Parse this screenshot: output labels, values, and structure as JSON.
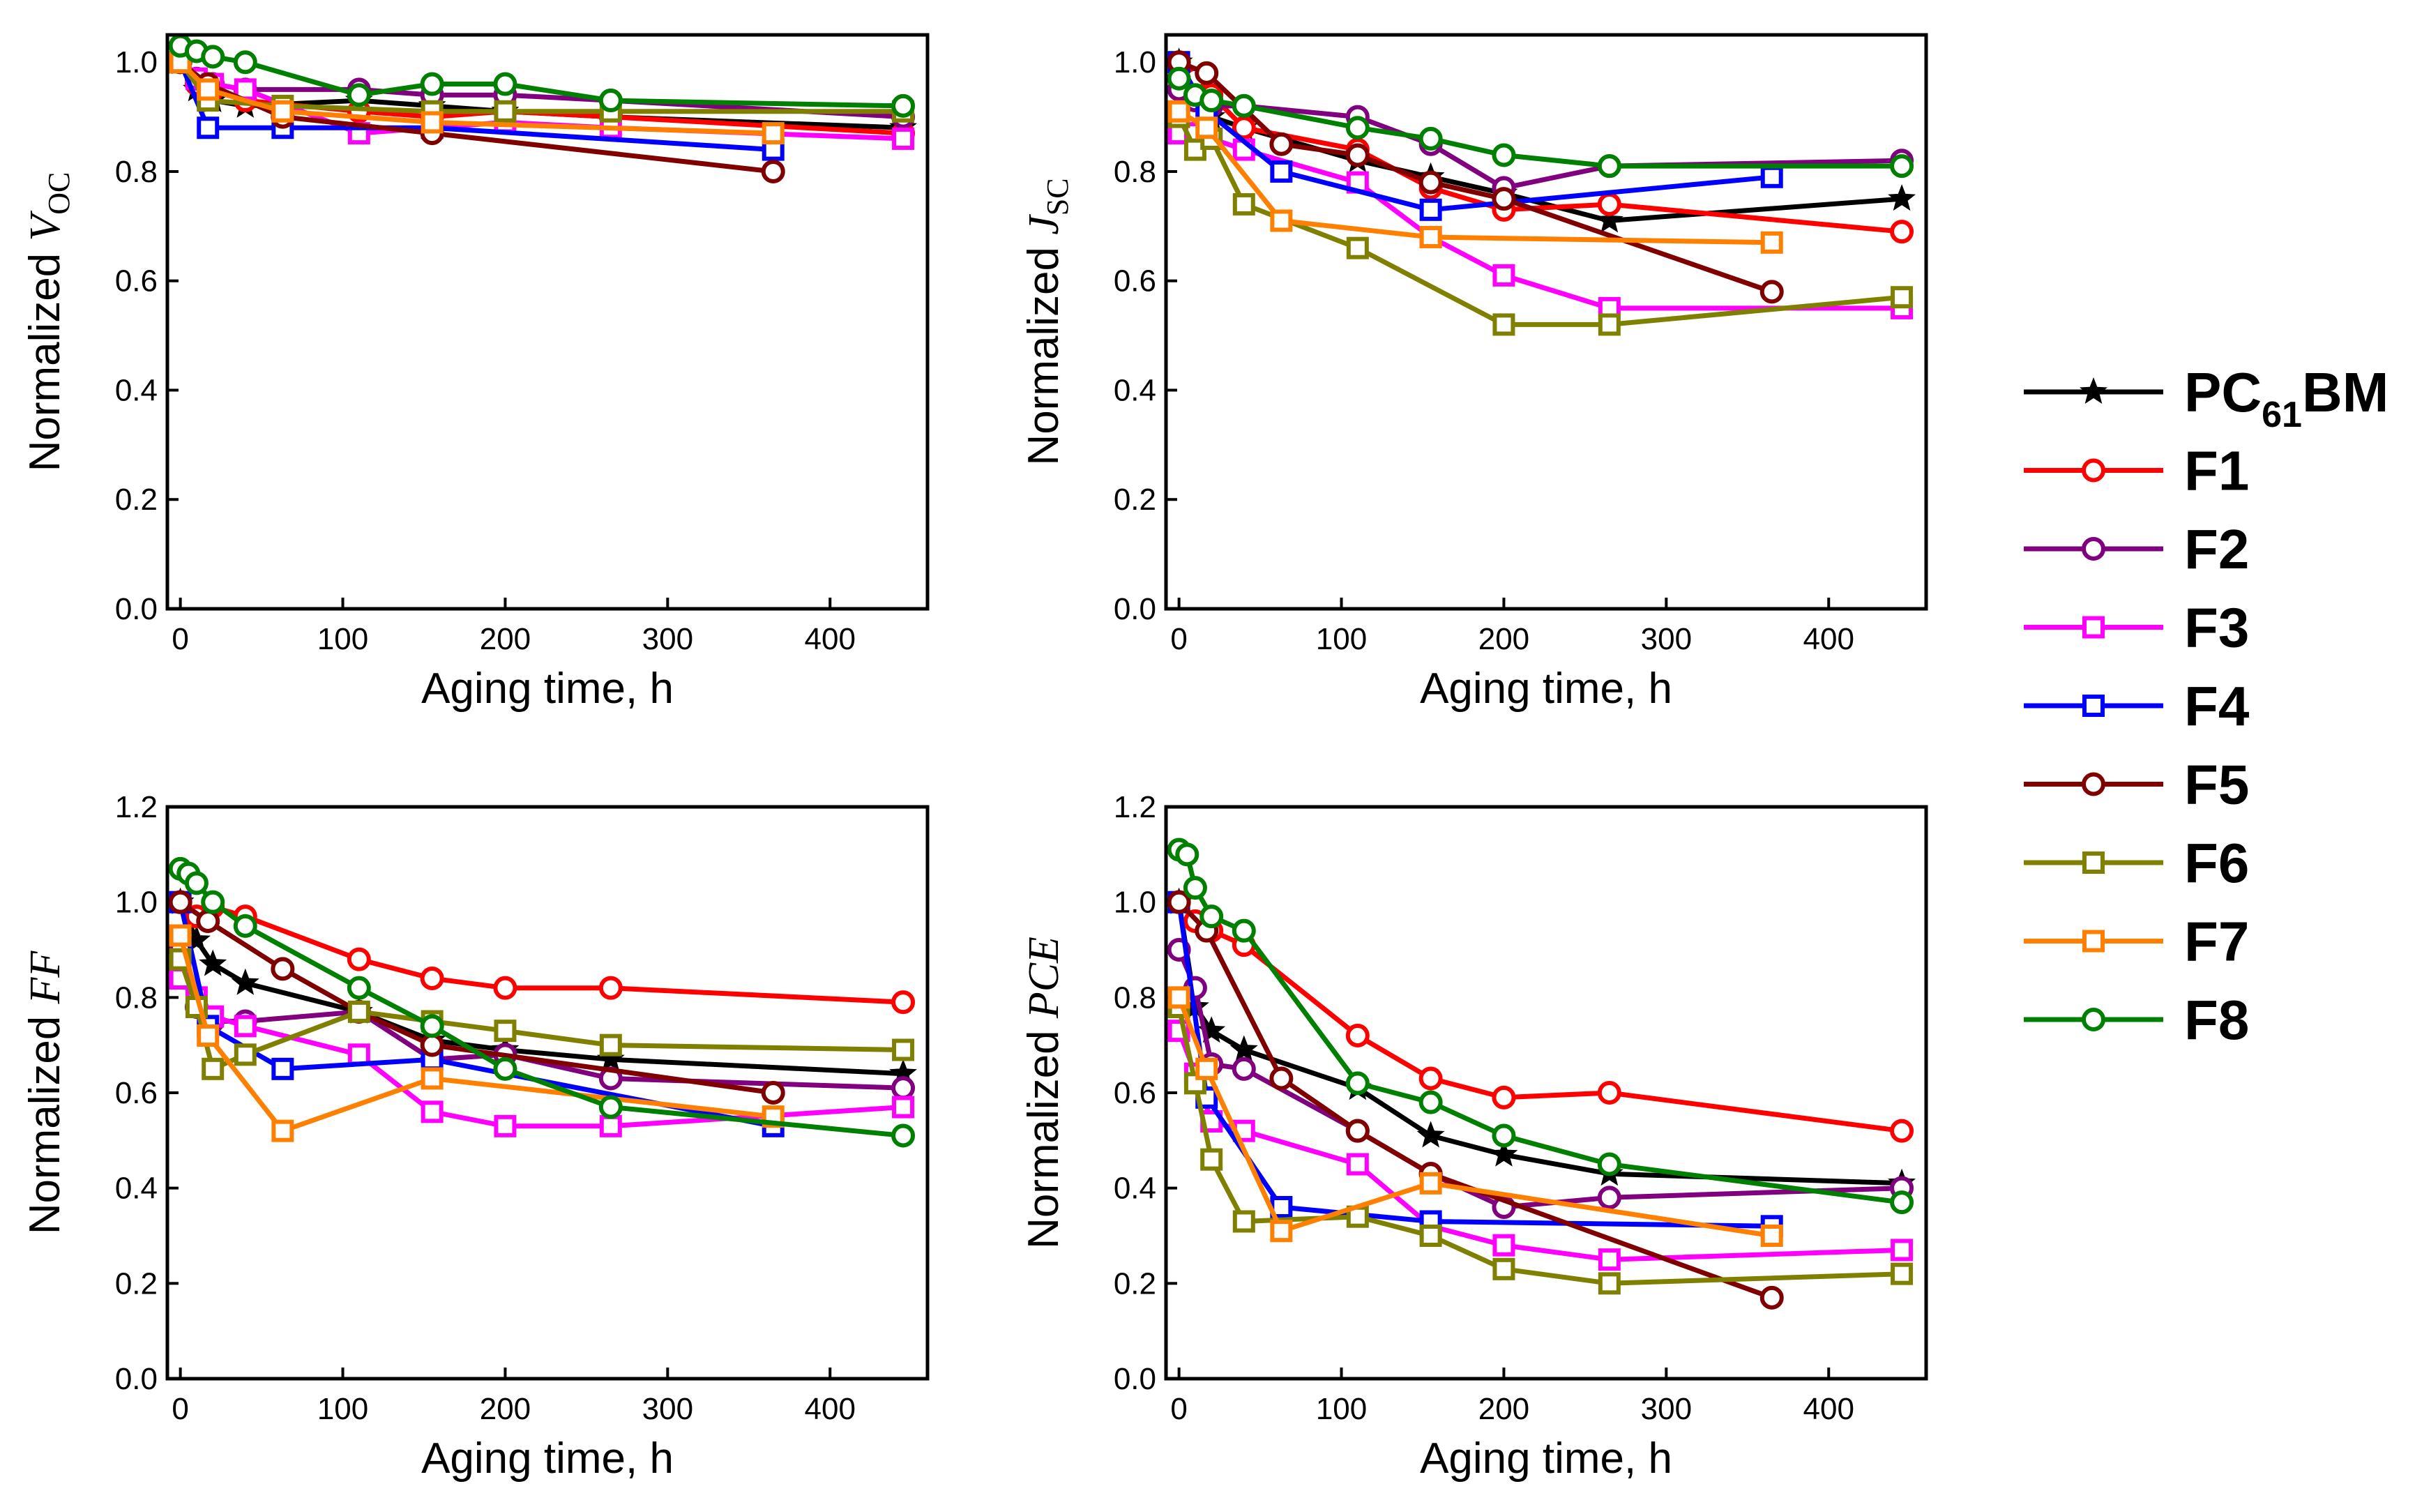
{
  "legend": {
    "entries": [
      {
        "key": "PC61BM",
        "label_main": "PC",
        "label_sub": "61",
        "label_tail": "BM",
        "color": "#000000",
        "marker": "star"
      },
      {
        "key": "F1",
        "label": "F1",
        "color": "#ff0000",
        "marker": "circle"
      },
      {
        "key": "F2",
        "label": "F2",
        "color": "#800080",
        "marker": "circle"
      },
      {
        "key": "F3",
        "label": "F3",
        "color": "#ff00ff",
        "marker": "square"
      },
      {
        "key": "F4",
        "label": "F4",
        "color": "#0000ff",
        "marker": "square"
      },
      {
        "key": "F5",
        "label": "F5",
        "color": "#800000",
        "marker": "circle"
      },
      {
        "key": "F6",
        "label": "F6",
        "color": "#808000",
        "marker": "square"
      },
      {
        "key": "F7",
        "label": "F7",
        "color": "#ff8000",
        "marker": "square"
      },
      {
        "key": "F8",
        "label": "F8",
        "color": "#008000",
        "marker": "circle"
      }
    ]
  },
  "chart_data": [
    {
      "id": "voc",
      "type": "line",
      "title": "",
      "ylabel_prefix": "Normalized ",
      "ylabel_symbol": "V",
      "ylabel_sub": "OC",
      "xlabel": "Aging time, h",
      "xlim": [
        -8,
        460
      ],
      "ylim": [
        0,
        1.05
      ],
      "xticks": [
        0,
        100,
        200,
        300,
        400
      ],
      "xtick_labels": [
        "0",
        "100",
        "200",
        "300",
        "400"
      ],
      "yticks": [
        0.0,
        0.2,
        0.4,
        0.6,
        0.8,
        1.0
      ],
      "ytick_labels": [
        "0.0",
        "0.2",
        "0.4",
        "0.6",
        "0.8",
        "1.0"
      ],
      "series": [
        {
          "name": "PC61BM",
          "x": [
            0,
            10,
            20,
            40,
            110,
            155,
            200,
            265,
            445
          ],
          "y": [
            1.0,
            0.95,
            0.93,
            0.92,
            0.93,
            0.92,
            0.91,
            0.9,
            0.88
          ]
        },
        {
          "name": "F1",
          "x": [
            0,
            10,
            20,
            40,
            110,
            155,
            200,
            265,
            445
          ],
          "y": [
            1.0,
            0.96,
            0.95,
            0.93,
            0.91,
            0.9,
            0.91,
            0.9,
            0.87
          ]
        },
        {
          "name": "F2",
          "x": [
            0,
            10,
            20,
            40,
            110,
            155,
            200,
            265,
            445
          ],
          "y": [
            1.0,
            0.97,
            0.96,
            0.95,
            0.95,
            0.94,
            0.94,
            0.93,
            0.9
          ]
        },
        {
          "name": "F3",
          "x": [
            0,
            10,
            20,
            40,
            110,
            155,
            200,
            265,
            445
          ],
          "y": [
            1.0,
            0.97,
            0.96,
            0.95,
            0.87,
            0.88,
            0.89,
            0.88,
            0.86
          ]
        },
        {
          "name": "F4",
          "x": [
            0,
            17,
            63,
            155,
            365
          ],
          "y": [
            1.0,
            0.88,
            0.88,
            0.88,
            0.84
          ]
        },
        {
          "name": "F5",
          "x": [
            0,
            17,
            63,
            155,
            365
          ],
          "y": [
            1.0,
            0.96,
            0.9,
            0.87,
            0.8
          ]
        },
        {
          "name": "F6",
          "x": [
            0,
            17,
            63,
            155,
            200,
            265,
            445
          ],
          "y": [
            1.0,
            0.93,
            0.92,
            0.91,
            0.91,
            0.91,
            0.91
          ]
        },
        {
          "name": "F7",
          "x": [
            0,
            17,
            63,
            155,
            365
          ],
          "y": [
            1.0,
            0.95,
            0.91,
            0.89,
            0.87
          ]
        },
        {
          "name": "F8",
          "x": [
            0,
            10,
            20,
            40,
            110,
            155,
            200,
            265,
            445
          ],
          "y": [
            1.03,
            1.02,
            1.01,
            1.0,
            0.94,
            0.96,
            0.96,
            0.93,
            0.92
          ]
        }
      ]
    },
    {
      "id": "jsc",
      "type": "line",
      "title": "",
      "ylabel_prefix": "Normalized ",
      "ylabel_symbol": "J",
      "ylabel_sub": "SC",
      "xlabel": "Aging time, h",
      "xlim": [
        -8,
        460
      ],
      "ylim": [
        0,
        1.05
      ],
      "xticks": [
        0,
        100,
        200,
        300,
        400
      ],
      "xtick_labels": [
        "0",
        "100",
        "200",
        "300",
        "400"
      ],
      "yticks": [
        0.0,
        0.2,
        0.4,
        0.6,
        0.8,
        1.0
      ],
      "ytick_labels": [
        "0.0",
        "0.2",
        "0.4",
        "0.6",
        "0.8",
        "1.0"
      ],
      "series": [
        {
          "name": "PC61BM",
          "x": [
            0,
            10,
            20,
            40,
            110,
            155,
            200,
            265,
            445
          ],
          "y": [
            1.0,
            0.93,
            0.9,
            0.88,
            0.82,
            0.79,
            0.76,
            0.71,
            0.75
          ]
        },
        {
          "name": "F1",
          "x": [
            0,
            10,
            20,
            40,
            110,
            155,
            200,
            265,
            445
          ],
          "y": [
            1.0,
            0.97,
            0.94,
            0.88,
            0.84,
            0.77,
            0.73,
            0.74,
            0.69
          ]
        },
        {
          "name": "F2",
          "x": [
            0,
            10,
            20,
            40,
            110,
            155,
            200,
            265,
            445
          ],
          "y": [
            0.95,
            0.93,
            0.92,
            0.92,
            0.9,
            0.85,
            0.77,
            0.81,
            0.82
          ]
        },
        {
          "name": "F3",
          "x": [
            0,
            10,
            20,
            40,
            110,
            155,
            200,
            265,
            445
          ],
          "y": [
            0.87,
            0.87,
            0.86,
            0.84,
            0.78,
            0.68,
            0.61,
            0.55,
            0.55
          ]
        },
        {
          "name": "F4",
          "x": [
            0,
            17,
            63,
            155,
            365
          ],
          "y": [
            1.0,
            0.91,
            0.8,
            0.73,
            0.79
          ]
        },
        {
          "name": "F5",
          "x": [
            0,
            17,
            63,
            110,
            155,
            200,
            365
          ],
          "y": [
            1.0,
            0.98,
            0.85,
            0.83,
            0.78,
            0.75,
            0.58
          ]
        },
        {
          "name": "F6",
          "x": [
            0,
            10,
            20,
            40,
            110,
            200,
            265,
            445
          ],
          "y": [
            0.9,
            0.84,
            0.86,
            0.74,
            0.66,
            0.52,
            0.52,
            0.57
          ]
        },
        {
          "name": "F7",
          "x": [
            0,
            17,
            63,
            155,
            365
          ],
          "y": [
            0.91,
            0.88,
            0.71,
            0.68,
            0.67
          ]
        },
        {
          "name": "F8",
          "x": [
            0,
            10,
            20,
            40,
            110,
            155,
            200,
            265,
            445
          ],
          "y": [
            0.97,
            0.94,
            0.93,
            0.92,
            0.88,
            0.86,
            0.83,
            0.81,
            0.81
          ]
        }
      ]
    },
    {
      "id": "ff",
      "type": "line",
      "title": "",
      "ylabel_prefix": "Normalized ",
      "ylabel_symbol": "FF",
      "ylabel_sub": "",
      "xlabel": "Aging time, h",
      "xlim": [
        -8,
        460
      ],
      "ylim": [
        0,
        1.2
      ],
      "xticks": [
        0,
        100,
        200,
        300,
        400
      ],
      "xtick_labels": [
        "0",
        "100",
        "200",
        "300",
        "400"
      ],
      "yticks": [
        0.0,
        0.2,
        0.4,
        0.6,
        0.8,
        1.0,
        1.2
      ],
      "ytick_labels": [
        "0.0",
        "0.2",
        "0.4",
        "0.6",
        "0.8",
        "1.0",
        "1.2"
      ],
      "series": [
        {
          "name": "PC61BM",
          "x": [
            0,
            10,
            20,
            40,
            110,
            155,
            200,
            265,
            445
          ],
          "y": [
            1.0,
            0.92,
            0.87,
            0.83,
            0.77,
            0.71,
            0.69,
            0.67,
            0.64
          ]
        },
        {
          "name": "F1",
          "x": [
            0,
            10,
            20,
            40,
            110,
            155,
            200,
            265,
            445
          ],
          "y": [
            1.0,
            0.97,
            0.99,
            0.97,
            0.88,
            0.84,
            0.82,
            0.82,
            0.79
          ]
        },
        {
          "name": "F2",
          "x": [
            0,
            10,
            20,
            40,
            110,
            155,
            200,
            265,
            445
          ],
          "y": [
            0.9,
            0.78,
            0.75,
            0.75,
            0.77,
            0.67,
            0.68,
            0.63,
            0.61
          ]
        },
        {
          "name": "F3",
          "x": [
            0,
            10,
            20,
            40,
            110,
            155,
            200,
            265,
            445
          ],
          "y": [
            0.84,
            0.8,
            0.76,
            0.74,
            0.68,
            0.56,
            0.53,
            0.53,
            0.57
          ]
        },
        {
          "name": "F4",
          "x": [
            0,
            17,
            63,
            155,
            365
          ],
          "y": [
            1.0,
            0.74,
            0.65,
            0.67,
            0.53
          ]
        },
        {
          "name": "F5",
          "x": [
            0,
            17,
            63,
            110,
            155,
            365
          ],
          "y": [
            1.0,
            0.96,
            0.86,
            0.77,
            0.7,
            0.6
          ]
        },
        {
          "name": "F6",
          "x": [
            0,
            10,
            20,
            40,
            110,
            155,
            200,
            265,
            445
          ],
          "y": [
            0.88,
            0.78,
            0.65,
            0.68,
            0.77,
            0.75,
            0.73,
            0.7,
            0.69
          ]
        },
        {
          "name": "F7",
          "x": [
            0,
            17,
            63,
            155,
            365
          ],
          "y": [
            0.93,
            0.72,
            0.52,
            0.63,
            0.55
          ]
        },
        {
          "name": "F8",
          "x": [
            0,
            5,
            10,
            20,
            40,
            110,
            155,
            200,
            265,
            445
          ],
          "y": [
            1.07,
            1.06,
            1.04,
            1.0,
            0.95,
            0.82,
            0.74,
            0.65,
            0.57,
            0.51
          ]
        }
      ]
    },
    {
      "id": "pce",
      "type": "line",
      "title": "",
      "ylabel_prefix": "Normalized ",
      "ylabel_symbol": "PCE",
      "ylabel_sub": "",
      "xlabel": "Aging time, h",
      "xlim": [
        -8,
        460
      ],
      "ylim": [
        0,
        1.2
      ],
      "xticks": [
        0,
        100,
        200,
        300,
        400
      ],
      "xtick_labels": [
        "0",
        "100",
        "200",
        "300",
        "400"
      ],
      "yticks": [
        0.0,
        0.2,
        0.4,
        0.6,
        0.8,
        1.0,
        1.2
      ],
      "ytick_labels": [
        "0.0",
        "0.2",
        "0.4",
        "0.6",
        "0.8",
        "1.0",
        "1.2"
      ],
      "series": [
        {
          "name": "PC61BM",
          "x": [
            0,
            10,
            20,
            40,
            110,
            155,
            200,
            265,
            445
          ],
          "y": [
            1.0,
            0.78,
            0.73,
            0.69,
            0.61,
            0.51,
            0.47,
            0.43,
            0.41
          ]
        },
        {
          "name": "F1",
          "x": [
            0,
            10,
            20,
            40,
            110,
            155,
            200,
            265,
            445
          ],
          "y": [
            1.0,
            0.96,
            0.94,
            0.91,
            0.72,
            0.63,
            0.59,
            0.6,
            0.52
          ]
        },
        {
          "name": "F2",
          "x": [
            0,
            10,
            20,
            40,
            110,
            155,
            200,
            265,
            445
          ],
          "y": [
            0.9,
            0.82,
            0.66,
            0.65,
            0.52,
            0.43,
            0.36,
            0.38,
            0.4
          ]
        },
        {
          "name": "F3",
          "x": [
            0,
            10,
            20,
            40,
            110,
            155,
            200,
            265,
            445
          ],
          "y": [
            0.73,
            0.64,
            0.54,
            0.52,
            0.45,
            0.32,
            0.28,
            0.25,
            0.27
          ]
        },
        {
          "name": "F4",
          "x": [
            0,
            17,
            63,
            155,
            365
          ],
          "y": [
            1.0,
            0.59,
            0.36,
            0.33,
            0.32
          ]
        },
        {
          "name": "F5",
          "x": [
            0,
            17,
            63,
            110,
            155,
            365
          ],
          "y": [
            1.0,
            0.94,
            0.63,
            0.52,
            0.43,
            0.17
          ]
        },
        {
          "name": "F6",
          "x": [
            0,
            10,
            20,
            40,
            110,
            155,
            200,
            265,
            445
          ],
          "y": [
            0.78,
            0.62,
            0.46,
            0.33,
            0.34,
            0.3,
            0.23,
            0.2,
            0.22
          ]
        },
        {
          "name": "F7",
          "x": [
            0,
            17,
            63,
            155,
            365
          ],
          "y": [
            0.8,
            0.65,
            0.31,
            0.41,
            0.3
          ]
        },
        {
          "name": "F8",
          "x": [
            0,
            5,
            10,
            20,
            40,
            110,
            155,
            200,
            265,
            445
          ],
          "y": [
            1.11,
            1.1,
            1.03,
            0.97,
            0.94,
            0.62,
            0.58,
            0.51,
            0.45,
            0.37
          ]
        }
      ]
    }
  ]
}
